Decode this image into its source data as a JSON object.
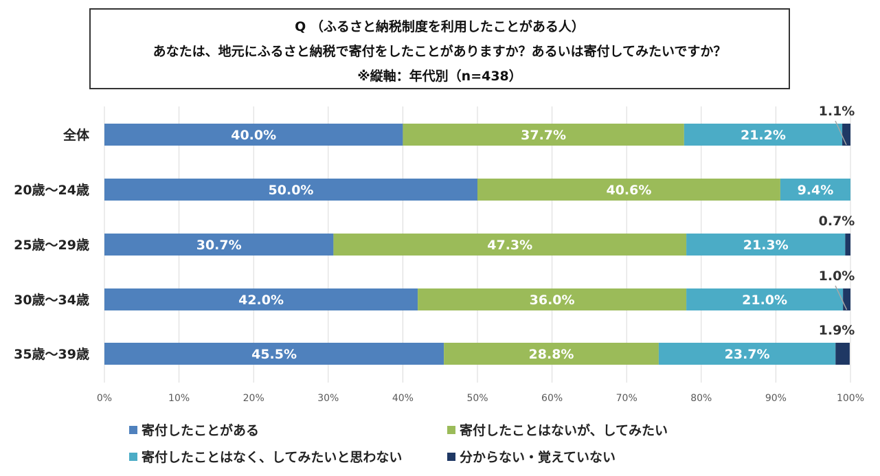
{
  "title": {
    "line1": "Q （ふるさと納税制度を利用したことがある人）",
    "line2": "あなたは、地元にふるさと納税で寄付をしたことがありますか？あるいは寄付してみたいですか？",
    "line3": "※縦軸：年代別（n=438）"
  },
  "colors": {
    "series": [
      "#4f81bd",
      "#9bbb59",
      "#4bacc6",
      "#1f3864"
    ]
  },
  "chart_data": {
    "type": "bar",
    "orientation": "horizontal",
    "stacked": "percent",
    "categories": [
      "全体",
      "20歳～24歳",
      "25歳～29歳",
      "30歳～34歳",
      "35歳～39歳"
    ],
    "series": [
      {
        "name": "寄付したことがある",
        "values": [
          40.0,
          50.0,
          30.7,
          42.0,
          45.5
        ]
      },
      {
        "name": "寄付したことはないが、してみたい",
        "values": [
          37.7,
          40.6,
          47.3,
          36.0,
          28.8
        ]
      },
      {
        "name": "寄付したことはなく、してみたいと思わない",
        "values": [
          21.2,
          9.4,
          21.3,
          21.0,
          23.7
        ]
      },
      {
        "name": "分からない・覚えていない",
        "values": [
          1.1,
          0.0,
          0.7,
          1.0,
          1.9
        ]
      }
    ],
    "data_labels": [
      [
        "40.0%",
        "37.7%",
        "21.2%",
        "1.1%"
      ],
      [
        "50.0%",
        "40.6%",
        "9.4%",
        ""
      ],
      [
        "30.7%",
        "47.3%",
        "21.3%",
        "0.7%"
      ],
      [
        "42.0%",
        "36.0%",
        "21.0%",
        "1.0%"
      ],
      [
        "45.5%",
        "28.8%",
        "23.7%",
        "1.9%"
      ]
    ],
    "xticks": [
      "0%",
      "10%",
      "20%",
      "30%",
      "40%",
      "50%",
      "60%",
      "70%",
      "80%",
      "90%",
      "100%"
    ],
    "xlim": [
      0,
      100
    ],
    "grid": true,
    "legend_position": "bottom"
  }
}
